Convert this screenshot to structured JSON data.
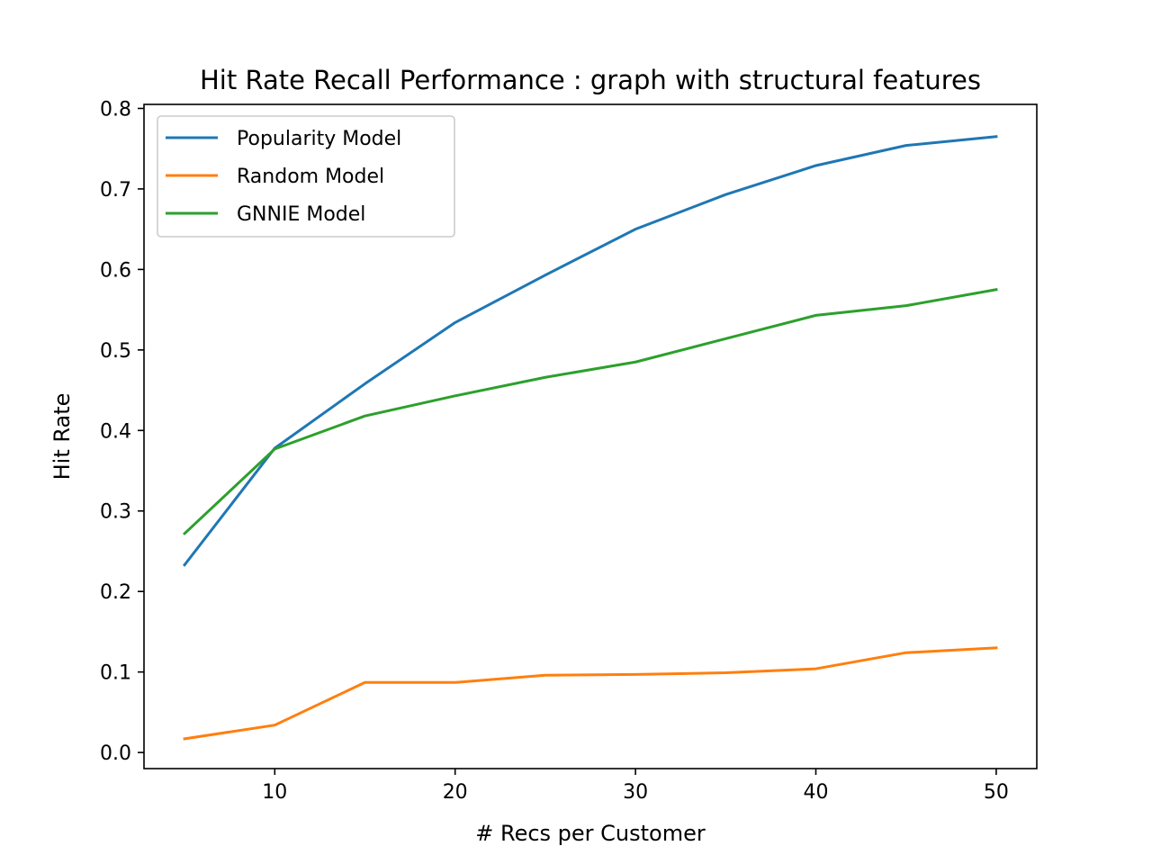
{
  "chart_data": {
    "type": "line",
    "title": "Hit Rate Recall Performance : graph with structural features",
    "xlabel": "# Recs per Customer",
    "ylabel": "Hit Rate",
    "xlim": [
      2.75,
      52.25
    ],
    "ylim": [
      -0.02,
      0.805
    ],
    "xticks": [
      10,
      20,
      30,
      40,
      50
    ],
    "yticks": [
      0.0,
      0.1,
      0.2,
      0.3,
      0.4,
      0.5,
      0.6,
      0.7,
      0.8
    ],
    "ytick_labels": [
      "0.0",
      "0.1",
      "0.2",
      "0.3",
      "0.4",
      "0.5",
      "0.6",
      "0.7",
      "0.8"
    ],
    "grid": false,
    "legend_position": "top-left",
    "x": [
      5,
      10,
      15,
      20,
      25,
      30,
      35,
      40,
      45,
      50
    ],
    "series": [
      {
        "name": "Popularity Model",
        "color": "#1f77b4",
        "values": [
          0.233,
          0.378,
          0.458,
          0.534,
          0.593,
          0.65,
          0.693,
          0.729,
          0.754,
          0.765
        ]
      },
      {
        "name": "Random Model",
        "color": "#ff7f0e",
        "values": [
          0.017,
          0.034,
          0.087,
          0.087,
          0.096,
          0.097,
          0.099,
          0.104,
          0.124,
          0.13
        ]
      },
      {
        "name": "GNNIE Model",
        "color": "#2ca02c",
        "values": [
          0.272,
          0.377,
          0.418,
          0.443,
          0.466,
          0.485,
          0.514,
          0.543,
          0.555,
          0.575
        ]
      }
    ]
  }
}
